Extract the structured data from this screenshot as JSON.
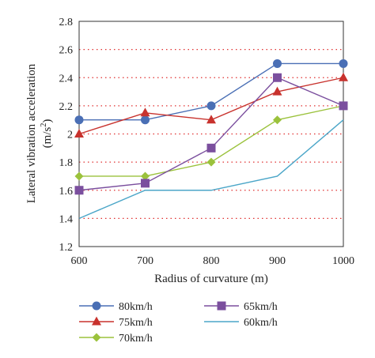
{
  "chart_data": {
    "type": "line",
    "x": [
      600,
      700,
      800,
      900,
      1000
    ],
    "xlim": [
      600,
      1000
    ],
    "ylim": [
      1.2,
      2.8
    ],
    "xticks": [
      "600",
      "700",
      "800",
      "900",
      "1000"
    ],
    "yticks": [
      "1.2",
      "1.4",
      "1.6",
      "1.8",
      "2",
      "2.2",
      "2.4",
      "2.6",
      "2.8"
    ],
    "xlabel": "Radius of curvature (m)",
    "ylabel_main": "Lateral vibration acceleration",
    "ylabel_unit_prefix": "(m/s",
    "ylabel_unit_sup": "2",
    "ylabel_unit_suffix": ")",
    "grid": "horizontal dotted",
    "grid_color": "#e03030",
    "legend_position": "bottom",
    "series": [
      {
        "name": "80km/h",
        "color": "#4a6fb5",
        "marker": "circle",
        "values": [
          2.1,
          2.1,
          2.2,
          2.5,
          2.5
        ]
      },
      {
        "name": "75km/h",
        "color": "#c8322d",
        "marker": "triangle",
        "values": [
          2.0,
          2.15,
          2.1,
          2.3,
          2.4
        ]
      },
      {
        "name": "70km/h",
        "color": "#9bc23c",
        "marker": "diamond",
        "values": [
          1.7,
          1.7,
          1.8,
          2.1,
          2.2
        ]
      },
      {
        "name": "65km/h",
        "color": "#7b4f9e",
        "marker": "square",
        "values": [
          1.6,
          1.65,
          1.9,
          2.4,
          2.2
        ]
      },
      {
        "name": "60km/h",
        "color": "#4ba6c8",
        "marker": "none",
        "values": [
          1.4,
          1.6,
          1.6,
          1.7,
          2.1
        ]
      }
    ]
  }
}
